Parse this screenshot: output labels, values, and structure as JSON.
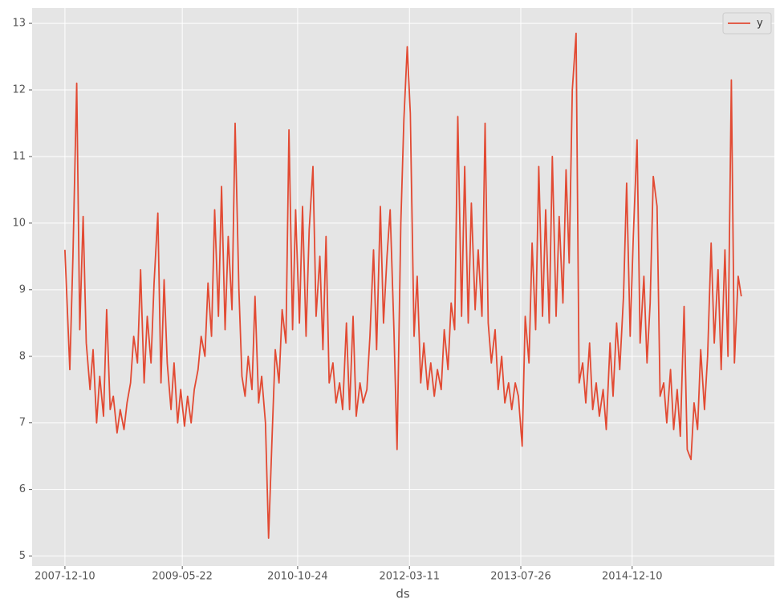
{
  "chart_data": {
    "type": "line",
    "x_label": "ds",
    "x": [
      "2007-12-10",
      "2008-01-01",
      "2008-01-15",
      "2008-02-01",
      "2008-02-15",
      "2008-03-01",
      "2008-03-15",
      "2008-04-01",
      "2008-04-15",
      "2008-05-01",
      "2008-05-15",
      "2008-06-01",
      "2008-06-15",
      "2008-07-01",
      "2008-07-15",
      "2008-08-01",
      "2008-08-15",
      "2008-09-01",
      "2008-09-15",
      "2008-10-01",
      "2008-10-15",
      "2008-11-01",
      "2008-11-15",
      "2008-12-01",
      "2008-12-15",
      "2009-01-01",
      "2009-01-15",
      "2009-02-01",
      "2009-02-15",
      "2009-03-01",
      "2009-03-15",
      "2009-04-01",
      "2009-04-15",
      "2009-05-01",
      "2009-05-15",
      "2009-06-01",
      "2009-06-15",
      "2009-07-01",
      "2009-07-15",
      "2009-08-01",
      "2009-08-15",
      "2009-09-01",
      "2009-09-15",
      "2009-10-01",
      "2009-10-15",
      "2009-11-01",
      "2009-11-15",
      "2009-12-01",
      "2009-12-15",
      "2010-01-01",
      "2010-01-15",
      "2010-02-01",
      "2010-02-15",
      "2010-03-01",
      "2010-03-15",
      "2010-04-01",
      "2010-04-15",
      "2010-05-01",
      "2010-05-15",
      "2010-06-01",
      "2010-06-15",
      "2010-07-01",
      "2010-07-15",
      "2010-08-01",
      "2010-08-15",
      "2010-09-01",
      "2010-09-15",
      "2010-10-01",
      "2010-10-15",
      "2010-11-01",
      "2010-11-15",
      "2010-12-01",
      "2010-12-15",
      "2011-01-01",
      "2011-01-15",
      "2011-02-01",
      "2011-02-15",
      "2011-03-01",
      "2011-03-15",
      "2011-04-01",
      "2011-04-15",
      "2011-05-01",
      "2011-05-15",
      "2011-06-01",
      "2011-06-15",
      "2011-07-01",
      "2011-07-15",
      "2011-08-01",
      "2011-08-15",
      "2011-09-01",
      "2011-09-15",
      "2011-10-01",
      "2011-10-15",
      "2011-11-01",
      "2011-11-15",
      "2011-12-01",
      "2011-12-15",
      "2012-01-01",
      "2012-01-15",
      "2012-02-01",
      "2012-02-15",
      "2012-03-01",
      "2012-03-15",
      "2012-04-01",
      "2012-04-15",
      "2012-05-01",
      "2012-05-15",
      "2012-06-01",
      "2012-06-15",
      "2012-07-01",
      "2012-07-15",
      "2012-08-01",
      "2012-08-15",
      "2012-09-01",
      "2012-09-15",
      "2012-10-01",
      "2012-10-15",
      "2012-11-01",
      "2012-11-15",
      "2012-12-01",
      "2012-12-15",
      "2013-01-01",
      "2013-01-15",
      "2013-02-01",
      "2013-02-15",
      "2013-03-01",
      "2013-03-15",
      "2013-04-01",
      "2013-04-15",
      "2013-05-01",
      "2013-05-15",
      "2013-06-01",
      "2013-06-15",
      "2013-07-01",
      "2013-07-15",
      "2013-08-01",
      "2013-08-15",
      "2013-09-01",
      "2013-09-15",
      "2013-10-01",
      "2013-10-15",
      "2013-11-01",
      "2013-11-15",
      "2013-12-01",
      "2013-12-15",
      "2014-01-01",
      "2014-01-15",
      "2014-02-01",
      "2014-02-15",
      "2014-03-01",
      "2014-03-15",
      "2014-04-01",
      "2014-04-15",
      "2014-05-01",
      "2014-05-15",
      "2014-06-01",
      "2014-06-15",
      "2014-07-01",
      "2014-07-15",
      "2014-08-01",
      "2014-08-15",
      "2014-09-01",
      "2014-09-15",
      "2014-10-01",
      "2014-10-15",
      "2014-11-01",
      "2014-11-15",
      "2014-12-01",
      "2014-12-15",
      "2015-01-01",
      "2015-01-15",
      "2015-02-01",
      "2015-02-15",
      "2015-03-01",
      "2015-03-15",
      "2015-04-01",
      "2015-04-15",
      "2015-05-01",
      "2015-05-15",
      "2015-06-01",
      "2015-06-15",
      "2015-07-01",
      "2015-07-15",
      "2015-08-01",
      "2015-08-15",
      "2015-09-01",
      "2015-09-15",
      "2015-10-01",
      "2015-10-15",
      "2015-11-01",
      "2015-11-15",
      "2015-12-01",
      "2015-12-15",
      "2016-01-01",
      "2016-01-15",
      "2016-02-01",
      "2016-02-15",
      "2016-03-01",
      "2016-03-15",
      "2016-04-01",
      "2016-04-15"
    ],
    "series": [
      {
        "name": "y",
        "color": "#e24a33",
        "values": [
          9.6,
          7.8,
          9.5,
          12.1,
          8.4,
          10.1,
          8.2,
          7.5,
          8.1,
          7.0,
          7.7,
          7.1,
          8.7,
          7.2,
          7.4,
          6.85,
          7.2,
          6.9,
          7.3,
          7.6,
          8.3,
          7.9,
          9.3,
          7.6,
          8.6,
          7.9,
          9.1,
          10.15,
          7.6,
          9.15,
          7.9,
          7.2,
          7.9,
          7.0,
          7.5,
          6.95,
          7.4,
          7.0,
          7.5,
          7.8,
          8.3,
          8.0,
          9.1,
          8.3,
          10.2,
          8.6,
          10.55,
          8.4,
          9.8,
          8.7,
          11.5,
          9.0,
          7.7,
          7.4,
          8.0,
          7.5,
          8.9,
          7.3,
          7.7,
          7.0,
          5.27,
          6.8,
          8.1,
          7.6,
          8.7,
          8.2,
          11.4,
          8.4,
          10.2,
          8.5,
          10.25,
          8.3,
          9.9,
          10.85,
          8.6,
          9.5,
          8.1,
          9.8,
          7.6,
          7.9,
          7.3,
          7.6,
          7.2,
          8.5,
          7.2,
          8.6,
          7.1,
          7.6,
          7.3,
          7.5,
          8.3,
          9.6,
          8.1,
          10.25,
          8.5,
          9.5,
          10.2,
          8.4,
          6.6,
          10.0,
          11.55,
          12.65,
          11.65,
          8.3,
          9.2,
          7.6,
          8.2,
          7.5,
          7.9,
          7.4,
          7.8,
          7.5,
          8.4,
          7.8,
          8.8,
          8.4,
          11.6,
          8.6,
          10.85,
          8.5,
          10.3,
          8.7,
          9.6,
          8.6,
          11.5,
          8.5,
          7.9,
          8.4,
          7.5,
          8.0,
          7.3,
          7.6,
          7.2,
          7.6,
          7.4,
          6.65,
          8.6,
          7.9,
          9.7,
          8.4,
          10.85,
          8.6,
          10.2,
          8.5,
          11.0,
          8.6,
          10.1,
          8.8,
          10.8,
          9.4,
          12.0,
          12.85,
          7.6,
          7.9,
          7.3,
          8.2,
          7.2,
          7.6,
          7.1,
          7.5,
          6.9,
          8.2,
          7.4,
          8.5,
          7.8,
          8.9,
          10.6,
          8.3,
          9.8,
          11.25,
          8.2,
          9.2,
          7.9,
          8.8,
          10.7,
          10.25,
          7.4,
          7.6,
          7.0,
          7.8,
          6.9,
          7.5,
          6.8,
          8.75,
          6.6,
          6.45,
          7.3,
          6.9,
          8.1,
          7.2,
          8.0,
          9.7,
          8.2,
          9.3,
          7.8,
          9.6,
          8.0,
          12.15,
          7.9,
          9.2,
          8.9
        ]
      }
    ],
    "xlim": [
      "2007-07-15",
      "2016-09-11"
    ],
    "xticks": [
      "2007-12-10",
      "2009-05-22",
      "2010-10-24",
      "2012-03-11",
      "2013-07-26",
      "2014-12-10"
    ],
    "ylim": [
      4.85,
      13.23
    ],
    "yticks": [
      5,
      6,
      7,
      8,
      9,
      10,
      11,
      12,
      13
    ],
    "grid": true,
    "legend": "upper right"
  }
}
